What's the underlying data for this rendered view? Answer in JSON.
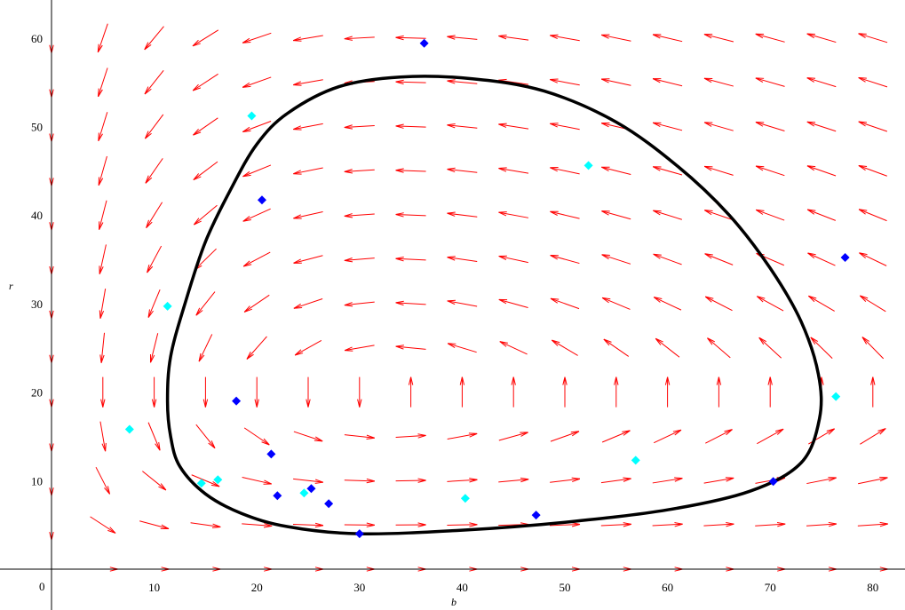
{
  "chart_data": {
    "type": "scatter",
    "title": "",
    "xlabel": "b",
    "ylabel": "r",
    "origin_label": "0",
    "xlim": [
      0,
      82
    ],
    "ylim": [
      0,
      64
    ],
    "x_ticks": [
      10,
      20,
      30,
      40,
      50,
      60,
      70,
      80
    ],
    "y_ticks": [
      10,
      20,
      30,
      40,
      50,
      60
    ],
    "grid": false,
    "legend": "none",
    "direction_field": {
      "color": "#ff0000",
      "equilibrium": [
        33,
        20
      ],
      "x_range": [
        0,
        82,
        5
      ],
      "y_range": [
        0,
        62.5,
        5
      ]
    },
    "orbit": {
      "color": "#000000",
      "points": [
        [
          30,
          4
        ],
        [
          40,
          4.4
        ],
        [
          50,
          5.3
        ],
        [
          60,
          6.7
        ],
        [
          68,
          8.8
        ],
        [
          73,
          12
        ],
        [
          74.8,
          17
        ],
        [
          74.7,
          22
        ],
        [
          73,
          28
        ],
        [
          70,
          34
        ],
        [
          66,
          40
        ],
        [
          61,
          45.5
        ],
        [
          55,
          50.5
        ],
        [
          48,
          54
        ],
        [
          41,
          55.4
        ],
        [
          34,
          55.6
        ],
        [
          28,
          54.5
        ],
        [
          23,
          51.5
        ],
        [
          20,
          48
        ],
        [
          17.5,
          43
        ],
        [
          15,
          37
        ],
        [
          13,
          30
        ],
        [
          11.6,
          24
        ],
        [
          11.3,
          19
        ],
        [
          11.6,
          15
        ],
        [
          12.5,
          11.6
        ],
        [
          15,
          8.5
        ],
        [
          18.5,
          6.3
        ],
        [
          23,
          4.8
        ]
      ]
    },
    "series": [
      {
        "color": "#0000ff",
        "points": [
          [
            36.3,
            59.4
          ],
          [
            20.5,
            41.7
          ],
          [
            77.3,
            35.2
          ],
          [
            18,
            19
          ],
          [
            21.4,
            13
          ],
          [
            70.3,
            9.9
          ],
          [
            25.3,
            9.1
          ],
          [
            22,
            8.3
          ],
          [
            27,
            7.4
          ],
          [
            47.2,
            6.1
          ],
          [
            30,
            4
          ]
        ]
      },
      {
        "color": "#00ffff",
        "points": [
          [
            19.5,
            51.2
          ],
          [
            52.3,
            45.6
          ],
          [
            11.3,
            29.7
          ],
          [
            76.4,
            19.5
          ],
          [
            7.6,
            15.8
          ],
          [
            56.9,
            12.3
          ],
          [
            14.6,
            9.7
          ],
          [
            16.2,
            10.1
          ],
          [
            24.6,
            8.6
          ],
          [
            40.3,
            8
          ]
        ]
      }
    ]
  }
}
